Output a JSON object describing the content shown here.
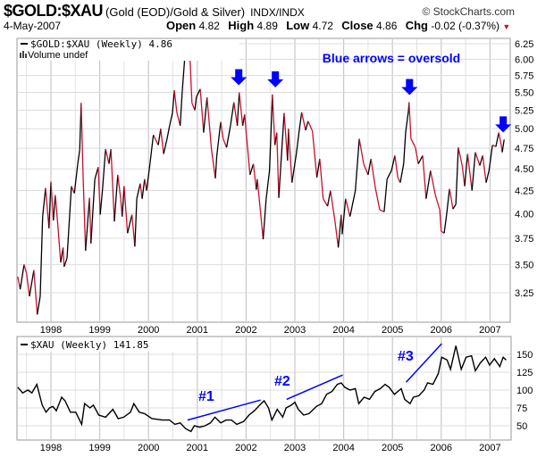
{
  "header": {
    "symbol": "$GOLD:$XAU",
    "description": "(Gold (EOD)/Gold & Silver)",
    "exchange": "INDX/INDX",
    "copyright": "© StockCharts.com",
    "date": "4-May-2007",
    "open_label": "Open",
    "open": "4.82",
    "high_label": "High",
    "high": "4.89",
    "low_label": "Low",
    "low": "4.72",
    "close_label": "Close",
    "close": "4.86",
    "chg_label": "Chg",
    "chg": "-0.02 (-0.37%)",
    "chg_arrow": "▼"
  },
  "colors": {
    "up": "#000000",
    "down": "#c8102e",
    "annotation": "#0000ff",
    "grid": "#d4d4d4"
  },
  "chart_data": [
    {
      "type": "line",
      "title": "$GOLD:$XAU (Weekly) 4.86",
      "legend": "$GOLD:$XAU (Weekly) 4.86",
      "volume_label": "Volume undef",
      "annotation": "Blue arrows = oversold",
      "yscale": "log",
      "ylim": [
        3.05,
        6.3
      ],
      "yticks": [
        "6.25",
        "6.00",
        "5.75",
        "5.50",
        "5.25",
        "5.00",
        "4.75",
        "4.50",
        "4.25",
        "4.00",
        "3.75",
        "3.50",
        "3.25"
      ],
      "xticks": [
        "1998",
        "1999",
        "2000",
        "2001",
        "2002",
        "2003",
        "2004",
        "2005",
        "2006",
        "2007"
      ],
      "oversold_arrows_at": [
        2001.85,
        2002.6,
        2005.35,
        2007.27
      ],
      "points": [
        [
          1997.32,
          3.39
        ],
        [
          1997.37,
          3.28
        ],
        [
          1997.45,
          3.5
        ],
        [
          1997.5,
          3.42
        ],
        [
          1997.56,
          3.22
        ],
        [
          1997.65,
          3.45
        ],
        [
          1997.72,
          3.07
        ],
        [
          1997.78,
          3.22
        ],
        [
          1997.83,
          3.97
        ],
        [
          1997.89,
          4.28
        ],
        [
          1997.96,
          3.85
        ],
        [
          1998.0,
          4.35
        ],
        [
          1998.05,
          3.93
        ],
        [
          1998.09,
          4.2
        ],
        [
          1998.14,
          3.89
        ],
        [
          1998.2,
          3.52
        ],
        [
          1998.25,
          3.66
        ],
        [
          1998.27,
          3.48
        ],
        [
          1998.33,
          3.56
        ],
        [
          1998.42,
          4.3
        ],
        [
          1998.48,
          4.22
        ],
        [
          1998.55,
          4.56
        ],
        [
          1998.59,
          4.73
        ],
        [
          1998.62,
          5.35
        ],
        [
          1998.66,
          4.4
        ],
        [
          1998.71,
          3.63
        ],
        [
          1998.79,
          4.17
        ],
        [
          1998.82,
          3.7
        ],
        [
          1998.9,
          4.38
        ],
        [
          1998.97,
          4.52
        ],
        [
          1999.01,
          3.99
        ],
        [
          1999.06,
          4.28
        ],
        [
          1999.12,
          4.74
        ],
        [
          1999.19,
          4.56
        ],
        [
          1999.23,
          4.74
        ],
        [
          1999.3,
          3.92
        ],
        [
          1999.37,
          4.43
        ],
        [
          1999.43,
          4.16
        ],
        [
          1999.46,
          3.97
        ],
        [
          1999.5,
          4.3
        ],
        [
          1999.57,
          3.8
        ],
        [
          1999.66,
          3.99
        ],
        [
          1999.72,
          3.67
        ],
        [
          1999.76,
          4.16
        ],
        [
          1999.83,
          4.33
        ],
        [
          1999.87,
          4.16
        ],
        [
          1999.92,
          4.38
        ],
        [
          1999.96,
          4.25
        ],
        [
          2000.03,
          4.56
        ],
        [
          2000.1,
          4.92
        ],
        [
          2000.2,
          4.79
        ],
        [
          2000.25,
          5.0
        ],
        [
          2000.31,
          4.68
        ],
        [
          2000.38,
          4.87
        ],
        [
          2000.43,
          5.03
        ],
        [
          2000.49,
          5.21
        ],
        [
          2000.53,
          5.53
        ],
        [
          2000.58,
          5.22
        ],
        [
          2000.65,
          5.04
        ],
        [
          2000.69,
          5.5
        ],
        [
          2000.76,
          6.2
        ],
        [
          2000.8,
          6.1
        ],
        [
          2000.84,
          6.21
        ],
        [
          2000.89,
          5.35
        ],
        [
          2000.95,
          5.25
        ],
        [
          2000.98,
          5.43
        ],
        [
          2001.06,
          5.55
        ],
        [
          2001.13,
          4.95
        ],
        [
          2001.2,
          5.43
        ],
        [
          2001.29,
          4.74
        ],
        [
          2001.37,
          4.39
        ],
        [
          2001.4,
          4.66
        ],
        [
          2001.48,
          5.09
        ],
        [
          2001.53,
          4.87
        ],
        [
          2001.6,
          4.76
        ],
        [
          2001.68,
          5.04
        ],
        [
          2001.75,
          5.36
        ],
        [
          2001.82,
          5.04
        ],
        [
          2001.86,
          5.5
        ],
        [
          2001.93,
          5.04
        ],
        [
          2001.97,
          5.19
        ],
        [
          2002.08,
          4.43
        ],
        [
          2002.15,
          4.56
        ],
        [
          2002.21,
          4.26
        ],
        [
          2002.23,
          4.38
        ],
        [
          2002.35,
          3.74
        ],
        [
          2002.41,
          4.15
        ],
        [
          2002.48,
          4.48
        ],
        [
          2002.54,
          5.47
        ],
        [
          2002.59,
          4.79
        ],
        [
          2002.63,
          4.95
        ],
        [
          2002.67,
          4.17
        ],
        [
          2002.78,
          5.21
        ],
        [
          2002.85,
          4.6
        ],
        [
          2002.87,
          5.0
        ],
        [
          2002.94,
          4.34
        ],
        [
          2003.03,
          4.68
        ],
        [
          2003.09,
          4.98
        ],
        [
          2003.14,
          5.22
        ],
        [
          2003.22,
          4.98
        ],
        [
          2003.27,
          5.1
        ],
        [
          2003.36,
          4.97
        ],
        [
          2003.45,
          4.4
        ],
        [
          2003.51,
          4.62
        ],
        [
          2003.58,
          4.16
        ],
        [
          2003.67,
          4.08
        ],
        [
          2003.73,
          4.25
        ],
        [
          2003.82,
          3.93
        ],
        [
          2003.89,
          3.66
        ],
        [
          2003.95,
          3.99
        ],
        [
          2003.97,
          3.79
        ],
        [
          2004.04,
          4.16
        ],
        [
          2004.13,
          3.97
        ],
        [
          2004.24,
          4.25
        ],
        [
          2004.32,
          4.87
        ],
        [
          2004.41,
          4.56
        ],
        [
          2004.5,
          4.43
        ],
        [
          2004.56,
          4.62
        ],
        [
          2004.65,
          4.28
        ],
        [
          2004.74,
          4.04
        ],
        [
          2004.83,
          4.02
        ],
        [
          2004.89,
          4.38
        ],
        [
          2004.98,
          4.48
        ],
        [
          2005.05,
          4.66
        ],
        [
          2005.11,
          4.4
        ],
        [
          2005.16,
          4.34
        ],
        [
          2005.23,
          4.56
        ],
        [
          2005.27,
          4.95
        ],
        [
          2005.33,
          5.25
        ],
        [
          2005.34,
          5.36
        ],
        [
          2005.38,
          4.87
        ],
        [
          2005.47,
          4.76
        ],
        [
          2005.53,
          4.56
        ],
        [
          2005.62,
          4.66
        ],
        [
          2005.69,
          4.16
        ],
        [
          2005.78,
          4.48
        ],
        [
          2005.88,
          4.2
        ],
        [
          2005.97,
          4.04
        ],
        [
          2006.0,
          3.82
        ],
        [
          2006.06,
          3.8
        ],
        [
          2006.11,
          3.99
        ],
        [
          2006.17,
          4.27
        ],
        [
          2006.24,
          4.05
        ],
        [
          2006.3,
          4.1
        ],
        [
          2006.35,
          4.76
        ],
        [
          2006.43,
          4.54
        ],
        [
          2006.48,
          4.3
        ],
        [
          2006.54,
          4.68
        ],
        [
          2006.63,
          4.25
        ],
        [
          2006.7,
          4.7
        ],
        [
          2006.79,
          4.54
        ],
        [
          2006.85,
          4.66
        ],
        [
          2006.92,
          4.34
        ],
        [
          2006.98,
          4.48
        ],
        [
          2007.05,
          4.79
        ],
        [
          2007.12,
          4.77
        ],
        [
          2007.18,
          4.95
        ],
        [
          2007.23,
          4.79
        ],
        [
          2007.25,
          4.7
        ],
        [
          2007.29,
          4.86
        ]
      ]
    },
    {
      "type": "line",
      "title": "$XAU (Weekly) 141.85",
      "legend": "$XAU (Weekly) 141.85",
      "yscale": "linear",
      "ylim": [
        35,
        175
      ],
      "yticks": [
        "150",
        "125",
        "100",
        "75",
        "50"
      ],
      "xticks": [
        "1998",
        "1999",
        "2000",
        "2001",
        "2002",
        "2003",
        "2004",
        "2005",
        "2006",
        "2007"
      ],
      "annotations": [
        {
          "label": "#1",
          "trend_from": [
            2000.8,
            58
          ],
          "trend_to": [
            2002.3,
            86
          ]
        },
        {
          "label": "#2",
          "trend_from": [
            2002.83,
            87
          ],
          "trend_to": [
            2003.98,
            121
          ]
        },
        {
          "label": "#3",
          "trend_from": [
            2005.28,
            111
          ],
          "trend_to": [
            2006.01,
            165
          ]
        }
      ],
      "points": [
        [
          1997.32,
          104
        ],
        [
          1997.42,
          96
        ],
        [
          1997.53,
          100
        ],
        [
          1997.61,
          96
        ],
        [
          1997.71,
          108
        ],
        [
          1997.82,
          79
        ],
        [
          1997.9,
          69
        ],
        [
          1997.97,
          75
        ],
        [
          1998.04,
          77
        ],
        [
          1998.11,
          71
        ],
        [
          1998.22,
          90
        ],
        [
          1998.29,
          85
        ],
        [
          1998.4,
          69
        ],
        [
          1998.51,
          69
        ],
        [
          1998.63,
          52
        ],
        [
          1998.69,
          81
        ],
        [
          1998.8,
          75
        ],
        [
          1998.87,
          79
        ],
        [
          1998.98,
          65
        ],
        [
          1999.12,
          62
        ],
        [
          1999.27,
          73
        ],
        [
          1999.38,
          60
        ],
        [
          1999.49,
          62
        ],
        [
          1999.63,
          69
        ],
        [
          1999.7,
          81
        ],
        [
          1999.81,
          69
        ],
        [
          1999.92,
          67
        ],
        [
          2000.07,
          60
        ],
        [
          2000.28,
          58
        ],
        [
          2000.43,
          58
        ],
        [
          2000.54,
          52
        ],
        [
          2000.65,
          54
        ],
        [
          2000.76,
          46
        ],
        [
          2000.87,
          42
        ],
        [
          2000.94,
          50
        ],
        [
          2001.05,
          48
        ],
        [
          2001.16,
          50
        ],
        [
          2001.27,
          54
        ],
        [
          2001.36,
          62
        ],
        [
          2001.48,
          54
        ],
        [
          2001.59,
          58
        ],
        [
          2001.7,
          58
        ],
        [
          2001.81,
          52
        ],
        [
          2001.95,
          56
        ],
        [
          2002.06,
          65
        ],
        [
          2002.17,
          71
        ],
        [
          2002.28,
          79
        ],
        [
          2002.37,
          85
        ],
        [
          2002.46,
          75
        ],
        [
          2002.53,
          58
        ],
        [
          2002.64,
          73
        ],
        [
          2002.75,
          62
        ],
        [
          2002.82,
          75
        ],
        [
          2002.93,
          79
        ],
        [
          2003.0,
          83
        ],
        [
          2003.07,
          73
        ],
        [
          2003.18,
          65
        ],
        [
          2003.29,
          67
        ],
        [
          2003.44,
          77
        ],
        [
          2003.55,
          81
        ],
        [
          2003.65,
          94
        ],
        [
          2003.76,
          98
        ],
        [
          2003.87,
          108
        ],
        [
          2003.95,
          110
        ],
        [
          2004.02,
          104
        ],
        [
          2004.13,
          100
        ],
        [
          2004.24,
          102
        ],
        [
          2004.31,
          81
        ],
        [
          2004.42,
          90
        ],
        [
          2004.53,
          87
        ],
        [
          2004.64,
          98
        ],
        [
          2004.75,
          102
        ],
        [
          2004.85,
          108
        ],
        [
          2004.93,
          104
        ],
        [
          2005.04,
          94
        ],
        [
          2005.11,
          98
        ],
        [
          2005.18,
          102
        ],
        [
          2005.25,
          87
        ],
        [
          2005.36,
          81
        ],
        [
          2005.43,
          90
        ],
        [
          2005.54,
          92
        ],
        [
          2005.65,
          100
        ],
        [
          2005.72,
          110
        ],
        [
          2005.83,
          108
        ],
        [
          2005.94,
          123
        ],
        [
          2006.01,
          146
        ],
        [
          2006.12,
          142
        ],
        [
          2006.19,
          129
        ],
        [
          2006.3,
          162
        ],
        [
          2006.41,
          129
        ],
        [
          2006.51,
          146
        ],
        [
          2006.62,
          148
        ],
        [
          2006.7,
          127
        ],
        [
          2006.8,
          138
        ],
        [
          2006.91,
          146
        ],
        [
          2006.99,
          135
        ],
        [
          2007.09,
          144
        ],
        [
          2007.2,
          133
        ],
        [
          2007.27,
          146
        ],
        [
          2007.33,
          142
        ]
      ]
    }
  ]
}
